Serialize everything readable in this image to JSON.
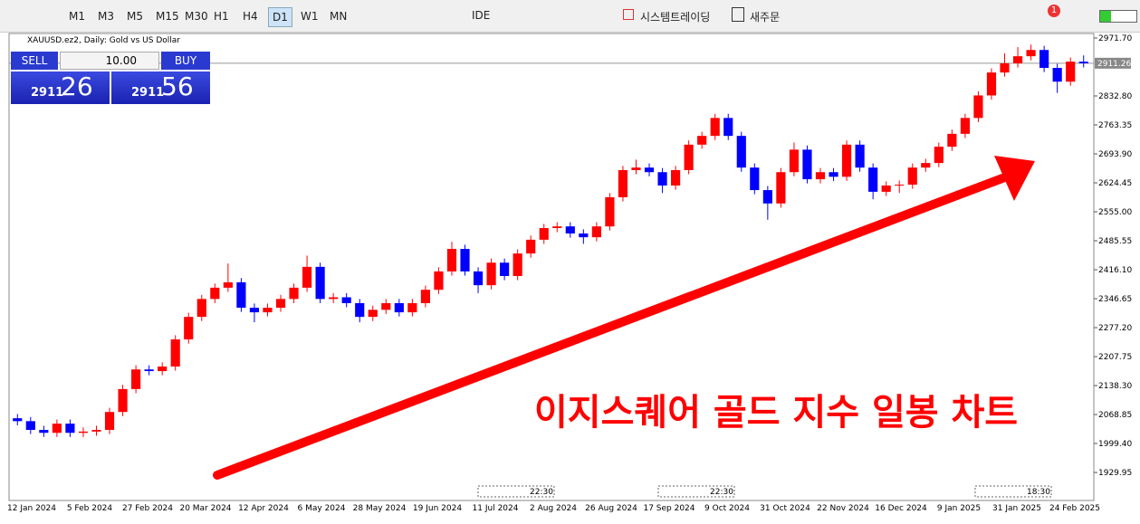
{
  "toolbar": {
    "timeframes": [
      "M1",
      "M3",
      "M5",
      "M15",
      "M30",
      "H1",
      "H4",
      "D1",
      "W1",
      "MN"
    ],
    "active_timeframe": 7,
    "ide": "IDE",
    "algo_trading": "시스템트레이딩",
    "new_order": "새주문",
    "alert_count": 1
  },
  "trade_panel": {
    "sell": "SELL",
    "buy": "BUY",
    "lot": "10.00",
    "bid_big": "2911",
    "bid_small": "26",
    "ask_big": "2911",
    "ask_small": "56"
  },
  "chart_data": {
    "type": "candlestick",
    "title": "XAUUSD.ez2, Daily:  Gold vs US Dollar",
    "open": [
      2060,
      2053,
      2032,
      2025,
      2047,
      2025,
      2028,
      2032,
      2075,
      2130,
      2177,
      2173,
      2184,
      2249,
      2303,
      2346,
      2373,
      2386,
      2325,
      2314,
      2325,
      2346,
      2373,
      2423,
      2346,
      2350,
      2336,
      2303,
      2320,
      2336,
      2314,
      2336,
      2368,
      2412,
      2466,
      2412,
      2379,
      2433,
      2401,
      2455,
      2488,
      2516,
      2520,
      2503,
      2494,
      2520,
      2590,
      2655,
      2661,
      2650,
      2618,
      2655,
      2716,
      2737,
      2780,
      2737,
      2661,
      2607,
      2575,
      2650,
      2704,
      2633,
      2650,
      2639,
      2716,
      2661,
      2603,
      2618,
      2620,
      2661,
      2672,
      2711,
      2742,
      2780,
      2834,
      2889,
      2911,
      2928,
      2943,
      2900,
      2867,
      2915
    ],
    "high": [
      2070,
      2063,
      2042,
      2057,
      2057,
      2038,
      2042,
      2085,
      2140,
      2187,
      2187,
      2194,
      2259,
      2313,
      2356,
      2383,
      2431,
      2396,
      2335,
      2335,
      2356,
      2383,
      2450,
      2433,
      2360,
      2360,
      2346,
      2330,
      2346,
      2346,
      2346,
      2378,
      2422,
      2483,
      2476,
      2422,
      2443,
      2443,
      2465,
      2498,
      2526,
      2530,
      2530,
      2513,
      2530,
      2600,
      2665,
      2680,
      2671,
      2660,
      2665,
      2726,
      2747,
      2790,
      2790,
      2747,
      2671,
      2617,
      2660,
      2721,
      2714,
      2660,
      2660,
      2726,
      2726,
      2671,
      2628,
      2630,
      2671,
      2682,
      2721,
      2752,
      2790,
      2844,
      2899,
      2935,
      2950,
      2956,
      2953,
      2910,
      2925,
      2930
    ],
    "low": [
      2043,
      2022,
      2015,
      2015,
      2015,
      2015,
      2018,
      2022,
      2065,
      2120,
      2163,
      2163,
      2174,
      2239,
      2293,
      2336,
      2363,
      2315,
      2290,
      2304,
      2315,
      2336,
      2363,
      2336,
      2336,
      2326,
      2290,
      2293,
      2310,
      2304,
      2304,
      2326,
      2358,
      2402,
      2402,
      2360,
      2369,
      2391,
      2391,
      2445,
      2478,
      2506,
      2493,
      2478,
      2484,
      2510,
      2580,
      2645,
      2640,
      2600,
      2608,
      2645,
      2706,
      2727,
      2727,
      2651,
      2597,
      2536,
      2565,
      2640,
      2623,
      2623,
      2629,
      2629,
      2651,
      2585,
      2593,
      2600,
      2610,
      2651,
      2662,
      2701,
      2732,
      2770,
      2824,
      2879,
      2901,
      2918,
      2890,
      2840,
      2857,
      2901
    ],
    "close": [
      2053,
      2032,
      2025,
      2047,
      2025,
      2028,
      2032,
      2075,
      2130,
      2177,
      2173,
      2184,
      2249,
      2303,
      2346,
      2373,
      2386,
      2325,
      2314,
      2325,
      2346,
      2373,
      2423,
      2346,
      2350,
      2336,
      2303,
      2320,
      2336,
      2314,
      2336,
      2368,
      2412,
      2466,
      2412,
      2379,
      2433,
      2401,
      2455,
      2488,
      2516,
      2520,
      2503,
      2494,
      2520,
      2590,
      2655,
      2661,
      2650,
      2618,
      2655,
      2716,
      2737,
      2780,
      2737,
      2661,
      2607,
      2575,
      2650,
      2704,
      2633,
      2650,
      2639,
      2716,
      2661,
      2603,
      2618,
      2620,
      2661,
      2672,
      2711,
      2742,
      2780,
      2834,
      2889,
      2911,
      2928,
      2943,
      2900,
      2867,
      2915,
      2911
    ],
    "up_color": "#ff0000",
    "down_color": "#0000ff",
    "ylim": [
      1862.8,
      2982.55
    ],
    "yticks": [
      {
        "value": 1929.95,
        "label": "1929.95"
      },
      {
        "value": 1999.4,
        "label": "1999.40"
      },
      {
        "value": 2068.85,
        "label": "2068.85"
      },
      {
        "value": 2138.3,
        "label": "2138.30"
      },
      {
        "value": 2207.75,
        "label": "2207.75"
      },
      {
        "value": 2277.2,
        "label": "2277.20"
      },
      {
        "value": 2346.65,
        "label": "2346.65"
      },
      {
        "value": 2416.1,
        "label": "2416.10"
      },
      {
        "value": 2485.55,
        "label": "2485.55"
      },
      {
        "value": 2555,
        "label": "2555.00"
      },
      {
        "value": 2624.45,
        "label": "2624.45"
      },
      {
        "value": 2693.9,
        "label": "2693.90"
      },
      {
        "value": 2763.35,
        "label": "2763.35"
      },
      {
        "value": 2832.8,
        "label": "2832.80"
      },
      {
        "value": 2971.7,
        "label": "2971.70"
      }
    ],
    "current_price": {
      "value": 2911.26,
      "label": "2911.26"
    },
    "x_tick_labels": [
      "12 Jan 2024",
      "5 Feb 2024",
      "27 Feb 2024",
      "20 Mar 2024",
      "12 Apr 2024",
      "6 May 2024",
      "28 May 2024",
      "19 Jun 2024",
      "11 Jul 2024",
      "2 Aug 2024",
      "26 Aug 2024",
      "17 Sep 2024",
      "9 Oct 2024",
      "31 Oct 2024",
      "22 Nov 2024",
      "16 Dec 2024",
      "9 Jan 2025",
      "31 Jan 2025",
      "24 Feb 2025"
    ],
    "session_labels": [
      "22:30",
      "22:30",
      "18:30"
    ],
    "annotation": "이지스퀘어 골드 지수 일봉 차트",
    "annotation_color": "#ff0000"
  }
}
